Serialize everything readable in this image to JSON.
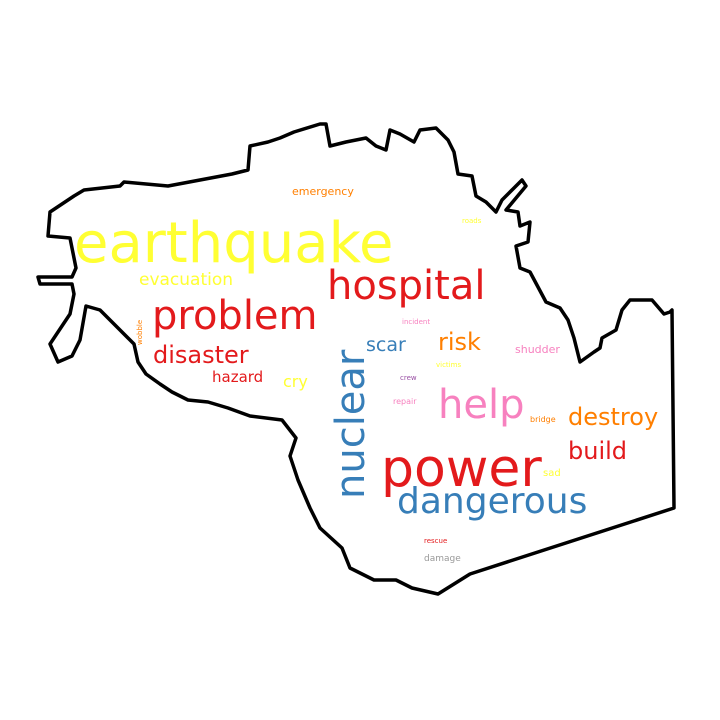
{
  "colors": {
    "red": "#e31a1c",
    "yellow": "#ffff33",
    "blue": "#377eb8",
    "pink": "#f781bf",
    "orange": "#ff7f00",
    "purple": "#984ea3",
    "gray": "#999999",
    "outline": "#000000"
  },
  "words": [
    {
      "id": "earthquake",
      "text": "earthquake"
    },
    {
      "id": "hospital",
      "text": "hospital"
    },
    {
      "id": "problem",
      "text": "problem"
    },
    {
      "id": "nuclear",
      "text": "nuclear"
    },
    {
      "id": "power",
      "text": "power"
    },
    {
      "id": "dangerous",
      "text": "dangerous"
    },
    {
      "id": "help",
      "text": "help"
    },
    {
      "id": "disaster",
      "text": "disaster"
    },
    {
      "id": "destroy",
      "text": "destroy"
    },
    {
      "id": "build",
      "text": "build"
    },
    {
      "id": "risk",
      "text": "risk"
    },
    {
      "id": "scar",
      "text": "scar"
    },
    {
      "id": "evacuation",
      "text": "evacuation"
    },
    {
      "id": "hazard",
      "text": "hazard"
    },
    {
      "id": "cry",
      "text": "cry"
    },
    {
      "id": "emergency",
      "text": "emergency"
    },
    {
      "id": "shudder",
      "text": "shudder"
    },
    {
      "id": "incident",
      "text": "incident"
    },
    {
      "id": "victims",
      "text": "victims"
    },
    {
      "id": "crew",
      "text": "crew"
    },
    {
      "id": "repair",
      "text": "repair"
    },
    {
      "id": "bridge",
      "text": "bridge"
    },
    {
      "id": "sad",
      "text": "sad"
    },
    {
      "id": "rescue",
      "text": "rescue"
    },
    {
      "id": "damage",
      "text": "damage"
    },
    {
      "id": "roads",
      "text": "roads"
    },
    {
      "id": "wobble",
      "text": "wobble"
    }
  ]
}
